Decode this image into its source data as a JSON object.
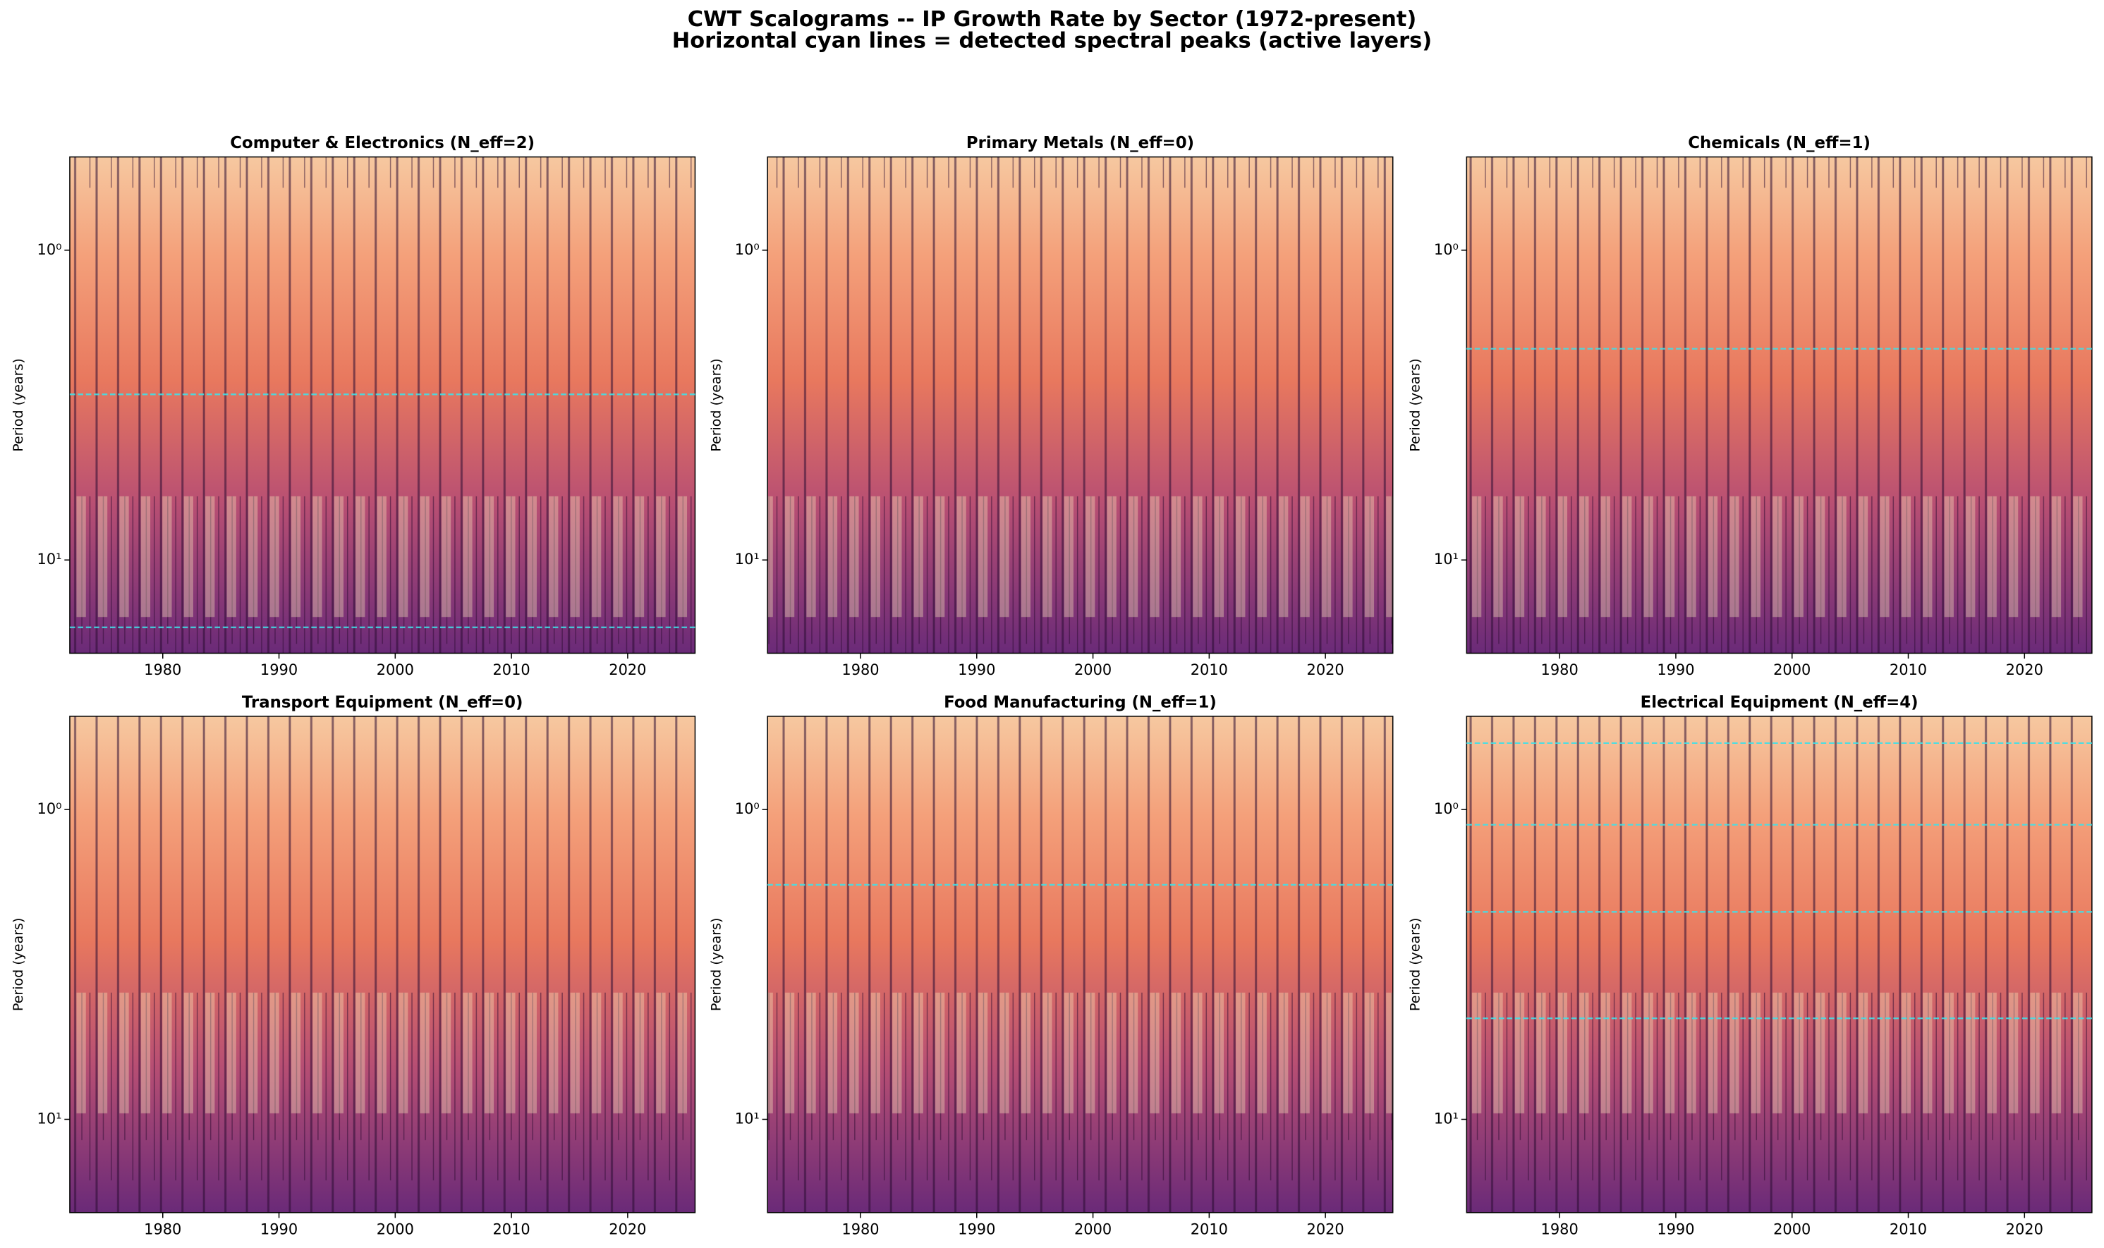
{
  "title": "CWT Scalograms -- IP Growth Rate by Sector (1972-present)",
  "subtitle": "Horizontal cyan lines = detected spectral peaks (active layers)",
  "chart_data": [
    {
      "type": "scalogram",
      "title": "Computer & Electronics (N_eff=2)",
      "ylabel": "Period (years)",
      "xlim": [
        1972,
        2025.8
      ],
      "xticks": [
        1980,
        1990,
        2000,
        2010,
        2020
      ],
      "ylim": [
        0.5,
        20
      ],
      "yticks": [
        {
          "value": 1,
          "label": "10⁰"
        },
        {
          "value": 10,
          "label": "10¹"
        }
      ],
      "y_scale": "log",
      "y_inverted": true,
      "peaks": [
        2.92,
        16.5
      ],
      "peak_color": "#40e0e8"
    },
    {
      "type": "scalogram",
      "title": "Primary Metals (N_eff=0)",
      "ylabel": "Period (years)",
      "xlim": [
        1972,
        2025.8
      ],
      "xticks": [
        1980,
        1990,
        2000,
        2010,
        2020
      ],
      "ylim": [
        0.5,
        20
      ],
      "yticks": [
        {
          "value": 1,
          "label": "10⁰"
        },
        {
          "value": 10,
          "label": "10¹"
        }
      ],
      "y_scale": "log",
      "y_inverted": true,
      "peaks": [],
      "peak_color": "#40e0e8"
    },
    {
      "type": "scalogram",
      "title": "Chemicals (N_eff=1)",
      "ylabel": "Period (years)",
      "xlim": [
        1972,
        2025.8
      ],
      "xticks": [
        1980,
        1990,
        2000,
        2010,
        2020
      ],
      "ylim": [
        0.5,
        20
      ],
      "yticks": [
        {
          "value": 1,
          "label": "10⁰"
        },
        {
          "value": 10,
          "label": "10¹"
        }
      ],
      "y_scale": "log",
      "y_inverted": true,
      "peaks": [
        2.08
      ],
      "peak_color": "#40e0e8"
    },
    {
      "type": "scalogram",
      "title": "Transport Equipment (N_eff=0)",
      "ylabel": "Period (years)",
      "xlim": [
        1972,
        2025.8
      ],
      "xticks": [
        1980,
        1990,
        2000,
        2010,
        2020
      ],
      "ylim": [
        0.5,
        20
      ],
      "yticks": [
        {
          "value": 1,
          "label": "10⁰"
        },
        {
          "value": 10,
          "label": "10¹"
        }
      ],
      "y_scale": "log",
      "y_inverted": true,
      "peaks": [],
      "peak_color": "#40e0e8"
    },
    {
      "type": "scalogram",
      "title": "Food Manufacturing (N_eff=1)",
      "ylabel": "Period (years)",
      "xlim": [
        1972,
        2025.8
      ],
      "xticks": [
        1980,
        1990,
        2000,
        2010,
        2020
      ],
      "ylim": [
        0.5,
        20
      ],
      "yticks": [
        {
          "value": 1,
          "label": "10⁰"
        },
        {
          "value": 10,
          "label": "10¹"
        }
      ],
      "y_scale": "log",
      "y_inverted": true,
      "peaks": [
        1.75
      ],
      "peak_color": "#40e0e8"
    },
    {
      "type": "scalogram",
      "title": "Electrical Equipment (N_eff=4)",
      "ylabel": "Period (years)",
      "xlim": [
        1972,
        2025.8
      ],
      "xticks": [
        1980,
        1990,
        2000,
        2010,
        2020
      ],
      "ylim": [
        0.5,
        20
      ],
      "yticks": [
        {
          "value": 1,
          "label": "10⁰"
        },
        {
          "value": 10,
          "label": "10¹"
        }
      ],
      "y_scale": "log",
      "y_inverted": true,
      "peaks": [
        0.61,
        1.12,
        2.14,
        4.72
      ],
      "peak_color": "#40e0e8"
    }
  ]
}
